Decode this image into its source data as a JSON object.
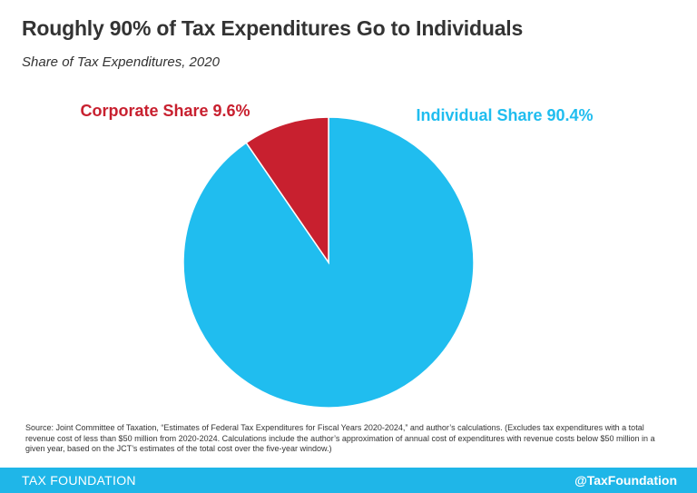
{
  "header": {
    "title": "Roughly 90% of Tax Expenditures Go to Individuals",
    "subtitle": "Share of Tax Expenditures, 2020"
  },
  "chart_data": {
    "type": "pie",
    "title": "Roughly 90% of Tax Expenditures Go to Individuals",
    "subtitle": "Share of Tax Expenditures, 2020",
    "slices": [
      {
        "name": "Individual Share",
        "value": 90.4,
        "label": "Individual Share 90.4%",
        "color": "#20bdef"
      },
      {
        "name": "Corporate Share",
        "value": 9.6,
        "label": "Corporate Share 9.6%",
        "color": "#c8202f"
      }
    ],
    "legend": "none"
  },
  "source": "Source: Joint Committee of Taxation, “Estimates of Federal Tax Expenditures for Fiscal Years 2020-2024,” and author’s calculations. (Excludes tax expenditures with a total revenue cost of less than $50 million from 2020-2024. Calculations include the author’s approximation of annual cost of expenditures with revenue costs below $50 million in a given year, based on the JCT’s estimates of the total cost over the five-year window.)",
  "footer": {
    "brand": "TAX FOUNDATION",
    "handle": "@TaxFoundation",
    "color": "#1fb6e8"
  }
}
